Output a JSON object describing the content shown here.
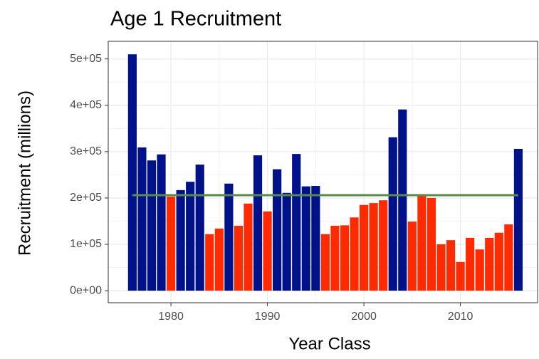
{
  "chart_data": {
    "type": "bar",
    "title": "Age 1 Recruitment",
    "x_label": "Year Class",
    "y_label": "Recruitment (millions)",
    "x": [
      1976,
      1977,
      1978,
      1979,
      1980,
      1981,
      1982,
      1983,
      1984,
      1985,
      1986,
      1987,
      1988,
      1989,
      1990,
      1991,
      1992,
      1993,
      1994,
      1995,
      1996,
      1997,
      1998,
      1999,
      2000,
      2001,
      2002,
      2003,
      2004,
      2005,
      2006,
      2007,
      2008,
      2009,
      2010,
      2011,
      2012,
      2013,
      2014,
      2015,
      2016
    ],
    "values": [
      510000,
      309000,
      281000,
      294000,
      203000,
      217000,
      235000,
      272000,
      122000,
      134000,
      231000,
      140000,
      188000,
      292000,
      171000,
      262000,
      211000,
      295000,
      225000,
      226000,
      122000,
      140000,
      141000,
      158000,
      185000,
      189000,
      195000,
      331000,
      391000,
      149000,
      204000,
      200000,
      100000,
      109000,
      62000,
      114000,
      89000,
      114000,
      125000,
      143000,
      306000
    ],
    "colors": [
      "#00128a",
      "#00128a",
      "#00128a",
      "#00128a",
      "#ff2a00",
      "#00128a",
      "#00128a",
      "#00128a",
      "#ff2a00",
      "#ff2a00",
      "#00128a",
      "#ff2a00",
      "#ff2a00",
      "#00128a",
      "#ff2a00",
      "#00128a",
      "#00128a",
      "#00128a",
      "#00128a",
      "#00128a",
      "#ff2a00",
      "#ff2a00",
      "#ff2a00",
      "#ff2a00",
      "#ff2a00",
      "#ff2a00",
      "#ff2a00",
      "#00128a",
      "#00128a",
      "#ff2a00",
      "#ff2a00",
      "#ff2a00",
      "#ff2a00",
      "#ff2a00",
      "#ff2a00",
      "#ff2a00",
      "#ff2a00",
      "#ff2a00",
      "#ff2a00",
      "#ff2a00",
      "#00128a"
    ],
    "reference_line": 206000,
    "reference_color": "#5a8a4a",
    "xlim": [
      1973.5,
      2018
    ],
    "xticks": [
      1980,
      1990,
      2000,
      2010
    ],
    "ylim": [
      -26000,
      538000
    ],
    "yticks": [
      {
        "value": 0,
        "label": "0e+00"
      },
      {
        "value": 100000,
        "label": "1e+05"
      },
      {
        "value": 200000,
        "label": "2e+05"
      },
      {
        "value": 300000,
        "label": "3e+05"
      },
      {
        "value": 400000,
        "label": "4e+05"
      },
      {
        "value": 500000,
        "label": "5e+05"
      }
    ],
    "grid": true
  }
}
